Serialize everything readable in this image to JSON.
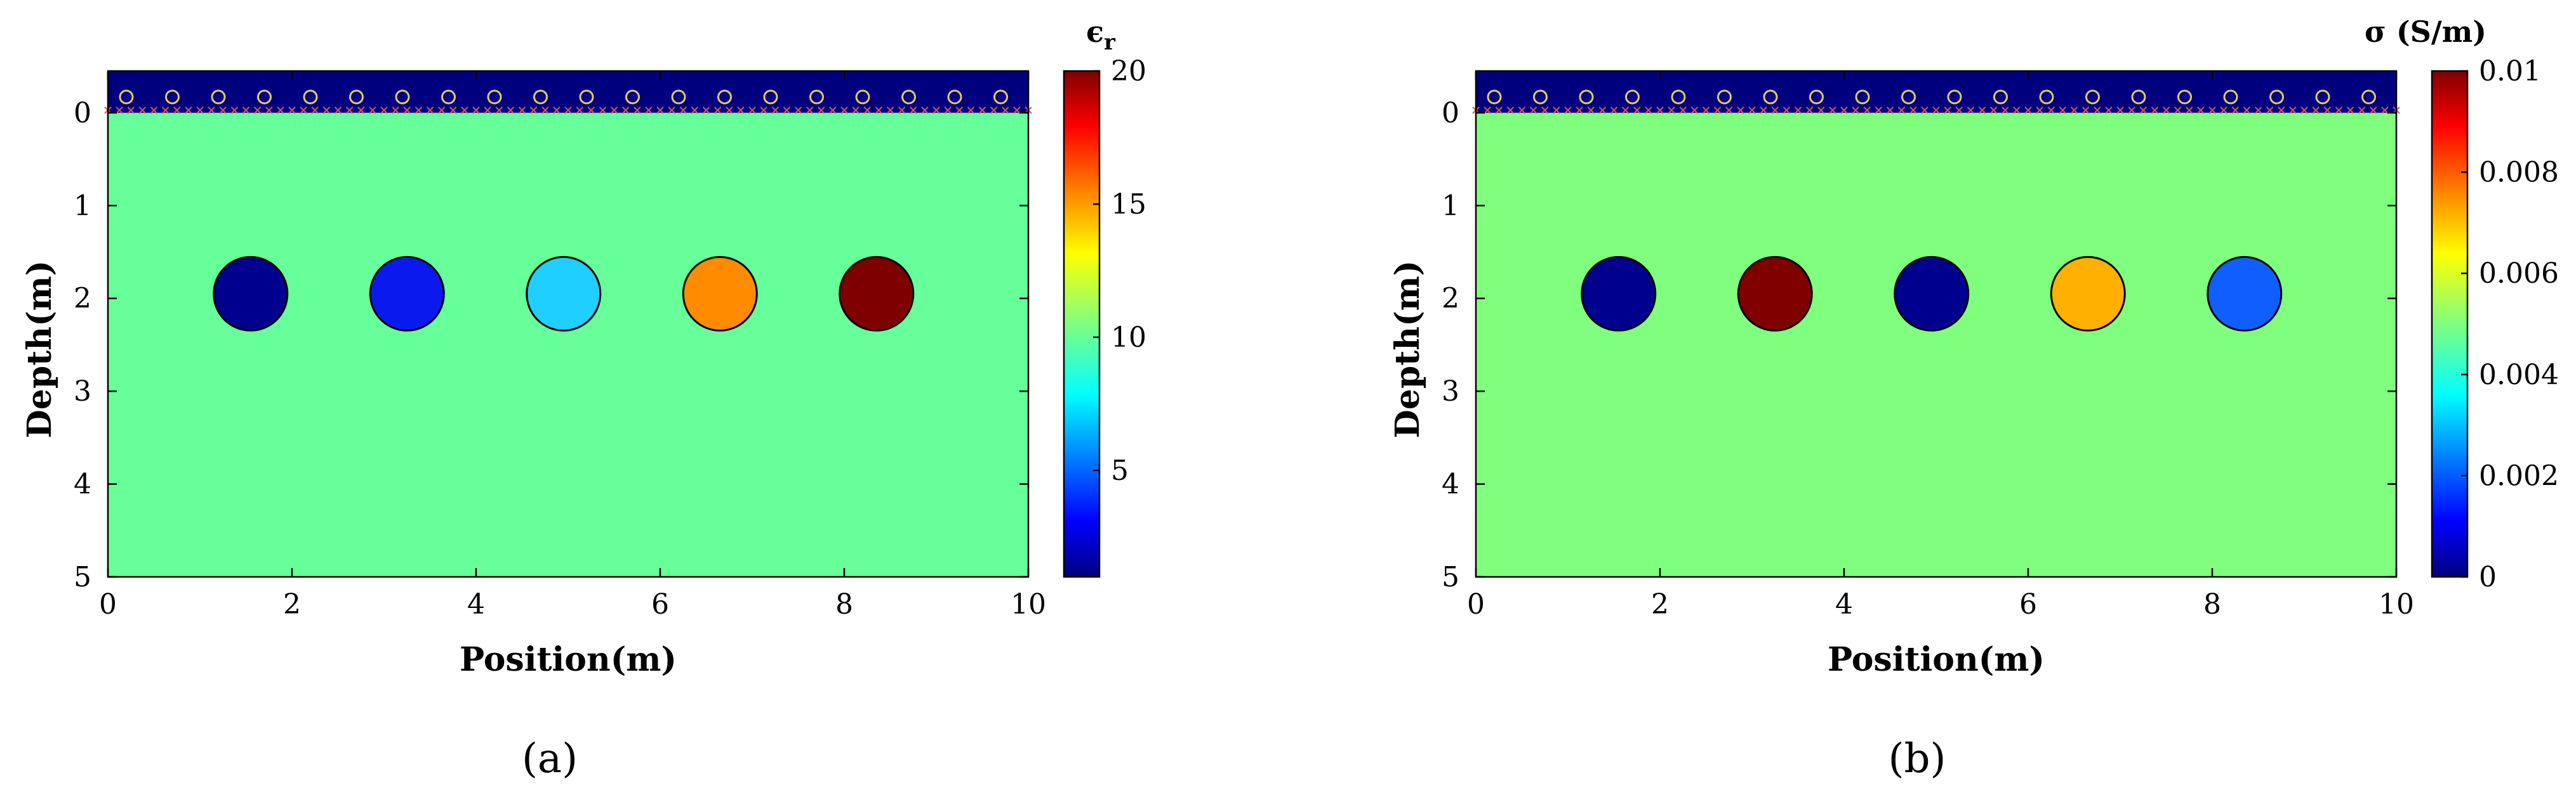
{
  "chart_data": [
    {
      "type": "heatmap",
      "panel_label": "a",
      "xlabel": "Position(m)",
      "ylabel": "Depth(m)",
      "xlim": [
        0,
        10
      ],
      "ylim": [
        5,
        -0.45
      ],
      "xticks": [
        0,
        2,
        4,
        6,
        8,
        10
      ],
      "yticks": [
        0,
        1,
        2,
        3,
        4,
        5
      ],
      "background_value": 10.5,
      "background_color": "#66FF99",
      "air_layer": {
        "depth_range": [
          -0.45,
          0
        ],
        "color": "#00007F"
      },
      "antennas": {
        "depth": -0.17,
        "x": [
          0.2,
          0.7,
          1.2,
          1.7,
          2.2,
          2.7,
          3.2,
          3.7,
          4.2,
          4.7,
          5.2,
          5.7,
          6.2,
          6.7,
          7.2,
          7.7,
          8.2,
          8.7,
          9.2,
          9.7
        ],
        "marker_color": "#E8C66A"
      },
      "surface_marker_color": "#E05050",
      "objects": [
        {
          "x": 1.55,
          "depth": 1.95,
          "radius": 0.4,
          "value": 1,
          "color": "#00008F"
        },
        {
          "x": 3.25,
          "depth": 1.95,
          "radius": 0.4,
          "value": 3,
          "color": "#0A1AEF"
        },
        {
          "x": 4.95,
          "depth": 1.95,
          "radius": 0.4,
          "value": 8,
          "color": "#1FCFFF"
        },
        {
          "x": 6.65,
          "depth": 1.95,
          "radius": 0.4,
          "value": 15,
          "color": "#FF8C00"
        },
        {
          "x": 8.35,
          "depth": 1.95,
          "radius": 0.4,
          "value": 20,
          "color": "#7F0000"
        }
      ],
      "colorbar": {
        "title": "ϵ",
        "title_sub": "r",
        "range": [
          1,
          20
        ],
        "ticks": [
          5,
          10,
          15,
          20
        ]
      }
    },
    {
      "type": "heatmap",
      "panel_label": "b",
      "xlabel": "Position(m)",
      "ylabel": "Depth(m)",
      "xlim": [
        0,
        10
      ],
      "ylim": [
        5,
        -0.45
      ],
      "xticks": [
        0,
        2,
        4,
        6,
        8,
        10
      ],
      "yticks": [
        0,
        1,
        2,
        3,
        4,
        5
      ],
      "background_value": 0.005,
      "background_color": "#80FF7F",
      "air_layer": {
        "depth_range": [
          -0.45,
          0
        ],
        "color": "#00007F"
      },
      "antennas": {
        "depth": -0.17,
        "x": [
          0.2,
          0.7,
          1.2,
          1.7,
          2.2,
          2.7,
          3.2,
          3.7,
          4.2,
          4.7,
          5.2,
          5.7,
          6.2,
          6.7,
          7.2,
          7.7,
          8.2,
          8.7,
          9.2,
          9.7
        ],
        "marker_color": "#E8C66A"
      },
      "surface_marker_color": "#E05050",
      "objects": [
        {
          "x": 1.55,
          "depth": 1.95,
          "radius": 0.4,
          "value": 0.0,
          "color": "#00008F"
        },
        {
          "x": 3.25,
          "depth": 1.95,
          "radius": 0.4,
          "value": 0.01,
          "color": "#800000"
        },
        {
          "x": 4.95,
          "depth": 1.95,
          "radius": 0.4,
          "value": 0.0,
          "color": "#00008F"
        },
        {
          "x": 6.65,
          "depth": 1.95,
          "radius": 0.4,
          "value": 0.0075,
          "color": "#FFB000"
        },
        {
          "x": 8.35,
          "depth": 1.95,
          "radius": 0.4,
          "value": 0.002,
          "color": "#0F5FFF"
        }
      ],
      "colorbar": {
        "title": "σ (S/m)",
        "title_sub": "",
        "range": [
          0,
          0.01
        ],
        "ticks": [
          0,
          0.002,
          0.004,
          0.006,
          0.008,
          0.01
        ],
        "tick_labels": [
          "0",
          "0.002",
          "0.004",
          "0.006",
          "0.008",
          "0.01"
        ]
      }
    }
  ],
  "captions": [
    "(a)",
    "(b)"
  ]
}
